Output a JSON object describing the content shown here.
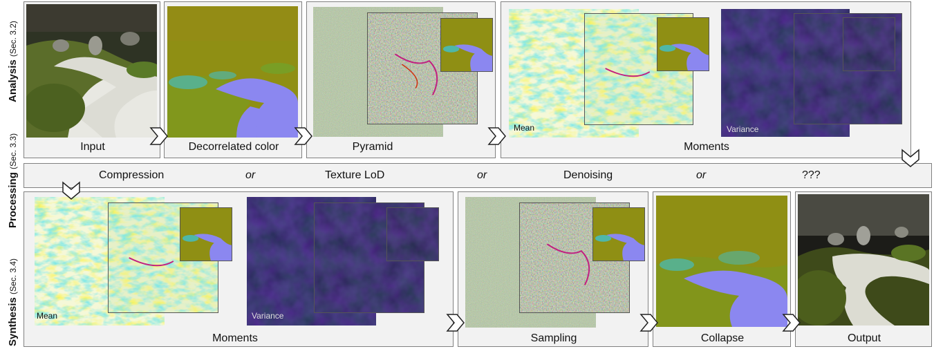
{
  "side_labels": {
    "analysis": {
      "bold": "Analysis",
      "sec": "(Sec. 3.2)"
    },
    "processing": {
      "bold": "Processing",
      "sec": "(Sec. 3.3)"
    },
    "synthesis": {
      "bold": "Synthesis",
      "sec": "(Sec. 3.4)"
    }
  },
  "analysis": {
    "input_label": "Input",
    "decorrelated_label": "Decorrelated color",
    "pyramid_label": "Pyramid",
    "moments_label": "Moments",
    "mean_tag": "Mean",
    "variance_tag": "Variance"
  },
  "processing": {
    "items": [
      "Compression",
      "Texture LoD",
      "Denoising",
      "???"
    ],
    "or_word": "or"
  },
  "synthesis": {
    "moments_label": "Moments",
    "mean_tag": "Mean",
    "variance_tag": "Variance",
    "sampling_label": "Sampling",
    "collapse_label": "Collapse",
    "output_label": "Output"
  },
  "colors": {
    "olive": "#8f8f14",
    "lavender": "#8b87f0",
    "teal": "#4fb7a8",
    "navy": "#0a0a3a",
    "pale_yellow": "#f5f8d8",
    "noise_green": "#a8b894"
  }
}
